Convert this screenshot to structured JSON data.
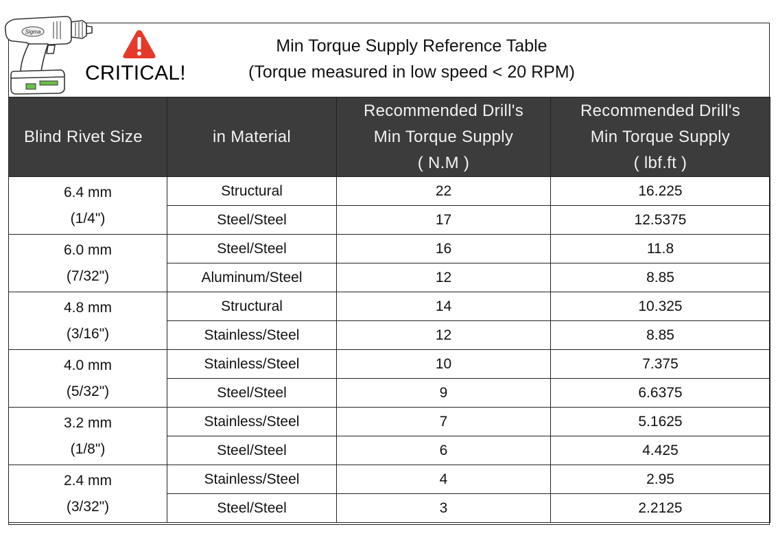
{
  "header": {
    "critical_label": "CRITICAL!",
    "title_line1": "Min Torque Supply Reference Table",
    "title_line2": "(Torque measured in low speed < 20 RPM)",
    "drill_brand": "Sigma",
    "icons": [
      "drill-image-icon",
      "warning-triangle-icon"
    ],
    "warning_color": "#e53a2b"
  },
  "table": {
    "headers": {
      "rivet_size": "Blind Rivet Size",
      "material": "in Material",
      "nm_line1": "Recommended Drill's",
      "nm_line2": "Min Torque Supply",
      "nm_unit": "( N.M )",
      "lbf_line1": "Recommended Drill's",
      "lbf_line2": "Min Torque Supply",
      "lbf_unit": "( lbf.ft )"
    },
    "groups": [
      {
        "size_mm": "6.4 mm",
        "size_in": "(1/4\")",
        "rows": [
          {
            "material": "Structural",
            "nm": "22",
            "lbf": "16.225"
          },
          {
            "material": "Steel/Steel",
            "nm": "17",
            "lbf": "12.5375"
          }
        ]
      },
      {
        "size_mm": "6.0 mm",
        "size_in": "(7/32\")",
        "rows": [
          {
            "material": "Steel/Steel",
            "nm": "16",
            "lbf": "11.8"
          },
          {
            "material": "Aluminum/Steel",
            "nm": "12",
            "lbf": "8.85"
          }
        ]
      },
      {
        "size_mm": "4.8 mm",
        "size_in": "(3/16\")",
        "rows": [
          {
            "material": "Structural",
            "nm": "14",
            "lbf": "10.325"
          },
          {
            "material": "Stainless/Steel",
            "nm": "12",
            "lbf": "8.85"
          }
        ]
      },
      {
        "size_mm": "4.0 mm",
        "size_in": "(5/32\")",
        "rows": [
          {
            "material": "Stainless/Steel",
            "nm": "10",
            "lbf": "7.375"
          },
          {
            "material": "Steel/Steel",
            "nm": "9",
            "lbf": "6.6375"
          }
        ]
      },
      {
        "size_mm": "3.2 mm",
        "size_in": "(1/8\")",
        "rows": [
          {
            "material": "Stainless/Steel",
            "nm": "7",
            "lbf": "5.1625"
          },
          {
            "material": "Steel/Steel",
            "nm": "6",
            "lbf": "4.425"
          }
        ]
      },
      {
        "size_mm": "2.4 mm",
        "size_in": "(3/32\")",
        "rows": [
          {
            "material": "Stainless/Steel",
            "nm": "4",
            "lbf": "2.95"
          },
          {
            "material": "Steel/Steel",
            "nm": "3",
            "lbf": "2.2125"
          }
        ]
      }
    ]
  }
}
